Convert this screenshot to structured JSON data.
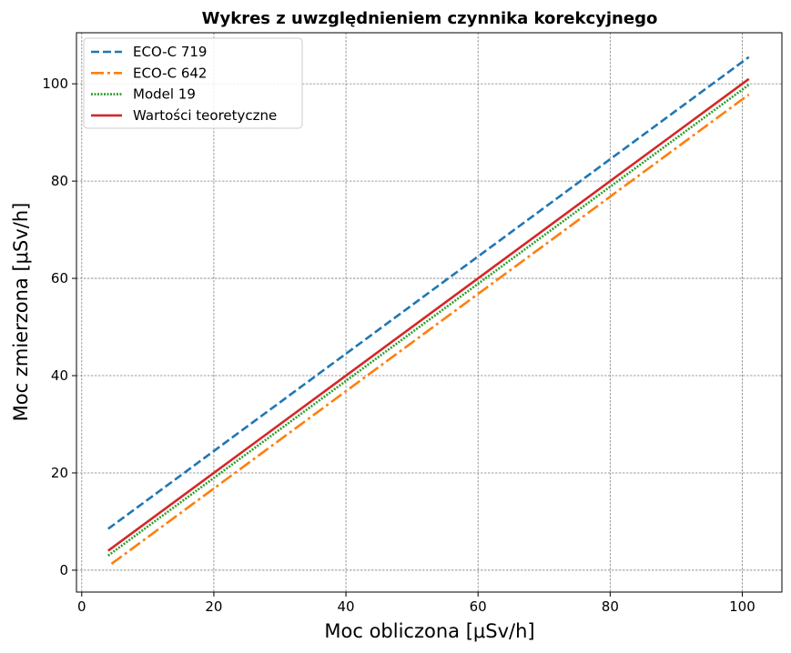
{
  "chart_data": {
    "type": "line",
    "title": "Wykres z uwzględnieniem czynnika korekcyjnego",
    "xlabel": "Moc obliczona [μSv/h]",
    "ylabel": "Moc zmierzona [μSv/h]",
    "xlim": [
      -0.8,
      106
    ],
    "ylim": [
      -4.5,
      110.5
    ],
    "xticks": [
      0,
      20,
      40,
      60,
      80,
      100
    ],
    "yticks": [
      0,
      20,
      40,
      60,
      80,
      100
    ],
    "xtick_labels": [
      "0",
      "20",
      "40",
      "60",
      "80",
      "100"
    ],
    "ytick_labels": [
      "0",
      "20",
      "40",
      "60",
      "80",
      "100"
    ],
    "grid": true,
    "legend_position": "top-left",
    "series": [
      {
        "name": "ECO-C 719",
        "color": "#1f77b4",
        "style": "dashed",
        "x": [
          4,
          101
        ],
        "y": [
          8.5,
          105.5
        ]
      },
      {
        "name": "ECO-C 642",
        "color": "#ff7f0e",
        "style": "dashdot",
        "x": [
          4.5,
          101
        ],
        "y": [
          1.3,
          97.8
        ]
      },
      {
        "name": "Model 19",
        "color": "#2ca02c",
        "style": "dotted",
        "x": [
          4,
          101
        ],
        "y": [
          3.0,
          99.8
        ]
      },
      {
        "name": "Wartości teoretyczne",
        "color": "#d62728",
        "style": "solid",
        "x": [
          4,
          101
        ],
        "y": [
          4.0,
          101.0
        ]
      }
    ]
  }
}
